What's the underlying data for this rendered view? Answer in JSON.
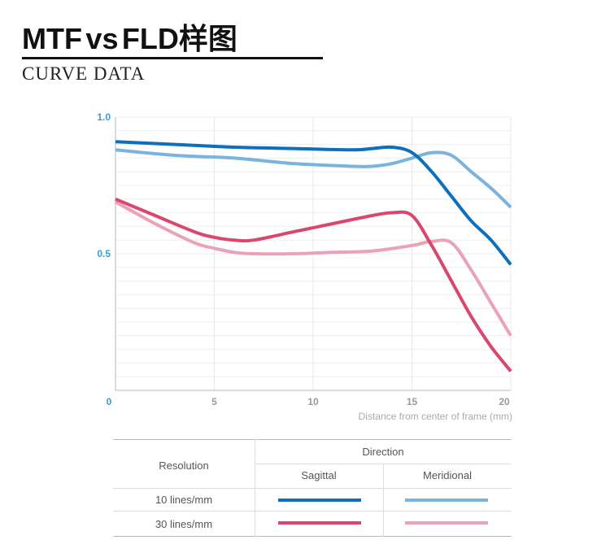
{
  "header": {
    "title_main": "MTF",
    "title_vs": "vs",
    "title_rest": "FLD样图",
    "subtitle": "CURVE DATA"
  },
  "chart_data": {
    "type": "line",
    "xlabel": "Distance from center of frame (mm)",
    "ylabel": "",
    "xlim": [
      0,
      20
    ],
    "ylim": [
      0,
      1.0
    ],
    "x_ticks": [
      "0",
      "5",
      "10",
      "15",
      "20"
    ],
    "y_ticks": [
      "0.5",
      "1.0"
    ],
    "grid": true,
    "series": [
      {
        "key": "s10",
        "color": "#0f6fb8",
        "x": [
          0,
          3,
          6,
          9,
          12,
          13,
          14,
          15,
          16,
          17,
          18,
          19,
          20
        ],
        "y": [
          0.91,
          0.9,
          0.89,
          0.885,
          0.88,
          0.885,
          0.89,
          0.87,
          0.8,
          0.71,
          0.62,
          0.55,
          0.46
        ]
      },
      {
        "key": "m10",
        "color": "#7ab3dd",
        "x": [
          0,
          3,
          6,
          9,
          12,
          13,
          14,
          15,
          16,
          17,
          18,
          19,
          20
        ],
        "y": [
          0.88,
          0.86,
          0.85,
          0.83,
          0.82,
          0.82,
          0.83,
          0.85,
          0.87,
          0.86,
          0.8,
          0.74,
          0.67
        ]
      },
      {
        "key": "s30",
        "color": "#d9466e",
        "x": [
          0,
          2,
          4,
          5,
          6,
          7,
          9,
          11,
          13,
          14,
          15,
          16,
          17,
          18,
          19,
          20
        ],
        "y": [
          0.7,
          0.64,
          0.58,
          0.56,
          0.55,
          0.55,
          0.58,
          0.61,
          0.64,
          0.65,
          0.64,
          0.53,
          0.4,
          0.27,
          0.16,
          0.07
        ]
      },
      {
        "key": "m30",
        "color": "#eaa2b6",
        "x": [
          0,
          2,
          4,
          5,
          6,
          7,
          9,
          11,
          13,
          15,
          16,
          17,
          18,
          19,
          20
        ],
        "y": [
          0.69,
          0.61,
          0.54,
          0.52,
          0.505,
          0.5,
          0.5,
          0.505,
          0.51,
          0.53,
          0.545,
          0.54,
          0.44,
          0.32,
          0.2
        ]
      }
    ]
  },
  "legend_table": {
    "direction": "Direction",
    "resolution": "Resolution",
    "sagittal": "Sagittal",
    "meridional": "Meridional",
    "row1": "10 lines/mm",
    "row2": "30 lines/mm"
  }
}
